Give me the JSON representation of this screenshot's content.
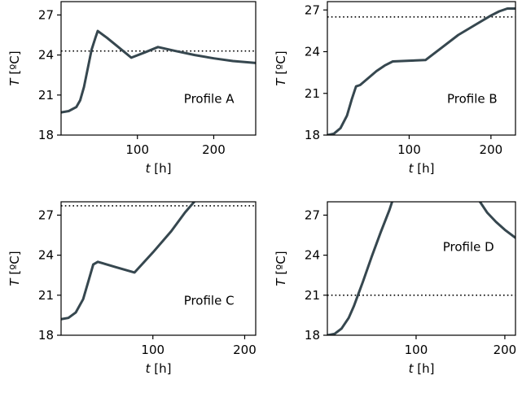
{
  "chart_data": [
    {
      "type": "line",
      "annotation": "Profile A",
      "xlabel_var": "t",
      "xlabel_unit": "[h]",
      "ylabel_var": "T",
      "ylabel_unit": "[ºC]",
      "xlim": [
        0,
        255
      ],
      "ylim": [
        18,
        28
      ],
      "xticks": [
        100,
        200
      ],
      "yticks": [
        18,
        21,
        24,
        27
      ],
      "line_color": "#36474f",
      "series": [
        {
          "x": [
            0,
            10,
            20,
            25,
            30,
            35,
            40,
            45,
            48,
            60,
            75,
            92,
            110,
            127,
            150,
            175,
            200,
            225,
            255
          ],
          "y": [
            19.7,
            19.8,
            20.1,
            20.6,
            21.6,
            23.0,
            24.4,
            25.3,
            25.8,
            25.3,
            24.6,
            23.8,
            24.2,
            24.6,
            24.3,
            24.0,
            23.75,
            23.55,
            23.4
          ]
        }
      ],
      "reference_line": 24.3
    },
    {
      "type": "line",
      "annotation": "Profile B",
      "xlabel_var": "t",
      "xlabel_unit": "[h]",
      "ylabel_var": "T",
      "ylabel_unit": "[ºC]",
      "xlim": [
        0,
        230
      ],
      "ylim": [
        18,
        27.6
      ],
      "xticks": [
        100,
        200
      ],
      "yticks": [
        18,
        21,
        24,
        27
      ],
      "line_color": "#36474f",
      "series": [
        {
          "x": [
            0,
            8,
            16,
            24,
            30,
            35,
            40,
            50,
            60,
            70,
            80,
            100,
            120,
            140,
            160,
            180,
            200,
            210,
            220,
            230
          ],
          "y": [
            18.0,
            18.1,
            18.5,
            19.4,
            20.6,
            21.5,
            21.6,
            22.1,
            22.6,
            23.0,
            23.3,
            23.35,
            23.4,
            24.3,
            25.2,
            25.9,
            26.6,
            26.9,
            27.1,
            27.1
          ]
        }
      ],
      "reference_line": 26.5
    },
    {
      "type": "line",
      "annotation": "Profile C",
      "xlabel_var": "t",
      "xlabel_unit": "[h]",
      "ylabel_var": "T",
      "ylabel_unit": "[ºC]",
      "xlim": [
        0,
        212
      ],
      "ylim": [
        18,
        28
      ],
      "xticks": [
        100,
        200
      ],
      "yticks": [
        18,
        21,
        24,
        27
      ],
      "line_color": "#36474f",
      "series": [
        {
          "x": [
            0,
            8,
            16,
            24,
            30,
            35,
            40,
            60,
            80,
            100,
            120,
            135,
            145
          ],
          "y": [
            19.2,
            19.3,
            19.7,
            20.7,
            22.1,
            23.3,
            23.5,
            23.1,
            22.7,
            24.2,
            25.8,
            27.2,
            28.0
          ]
        }
      ],
      "reference_line": 27.7
    },
    {
      "type": "line",
      "annotation": "Profile D",
      "xlabel_var": "t",
      "xlabel_unit": "[h]",
      "ylabel_var": "T",
      "ylabel_unit": "[ºC]",
      "xlim": [
        0,
        212
      ],
      "ylim": [
        18,
        28
      ],
      "xticks": [
        100,
        200
      ],
      "yticks": [
        18,
        21,
        24,
        27
      ],
      "line_color": "#36474f",
      "series": [
        {
          "x": [
            0,
            8,
            16,
            24,
            30,
            35,
            40,
            50,
            60,
            70,
            73
          ],
          "y": [
            18.0,
            18.1,
            18.5,
            19.3,
            20.2,
            21.1,
            22.0,
            23.9,
            25.7,
            27.4,
            28.0
          ]
        },
        {
          "x": [
            172,
            180,
            190,
            200,
            212
          ],
          "y": [
            28.0,
            27.2,
            26.5,
            25.9,
            25.3
          ]
        }
      ],
      "reference_line": 21.0
    }
  ]
}
